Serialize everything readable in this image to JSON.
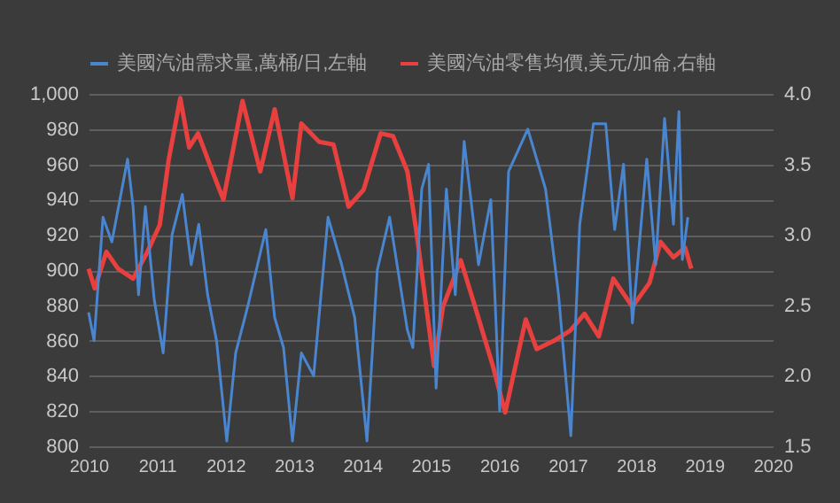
{
  "chart_data": {
    "type": "line",
    "legend": "top",
    "grid": "y",
    "xlim": [
      2010,
      2020
    ],
    "xticks": [
      2010,
      2011,
      2012,
      2013,
      2014,
      2015,
      2016,
      2017,
      2018,
      2019,
      2020
    ],
    "ylim": [
      800,
      1000
    ],
    "yticks": [
      800,
      820,
      840,
      860,
      880,
      900,
      920,
      940,
      960,
      980,
      {
        "value": 1000,
        "label": "1,000"
      }
    ],
    "y2lim": [
      1.5,
      4.0
    ],
    "y2ticks": [
      {
        "value": 1.5,
        "label": "1.5"
      },
      {
        "value": 2,
        "label": "2.0"
      },
      {
        "value": 2.5,
        "label": "2.5"
      },
      {
        "value": 3,
        "label": "3.0"
      },
      {
        "value": 3.5,
        "label": "3.5"
      },
      {
        "value": 4,
        "label": "4.0"
      }
    ],
    "series": [
      {
        "name": "美國汽油需求量,萬桶/日,左軸",
        "color": "#4a86d0",
        "x": [
          2010.0,
          2010.08,
          2010.21,
          2010.34,
          2010.57,
          2010.65,
          2010.73,
          2010.83,
          2010.96,
          2011.09,
          2011.22,
          2011.37,
          2011.5,
          2011.61,
          2011.74,
          2011.87,
          2012.02,
          2012.15,
          2012.33,
          2012.59,
          2012.72,
          2012.85,
          2012.98,
          2013.11,
          2013.29,
          2013.5,
          2013.7,
          2013.89,
          2014.07,
          2014.22,
          2014.4,
          2014.66,
          2014.74,
          2014.87,
          2014.97,
          2015.08,
          2015.23,
          2015.36,
          2015.49,
          2015.7,
          2015.88,
          2016.01,
          2016.14,
          2016.42,
          2016.68,
          2016.87,
          2017.05,
          2017.18,
          2017.38,
          2017.56,
          2017.69,
          2017.82,
          2017.95,
          2018.16,
          2018.29,
          2018.42,
          2018.55,
          2018.63,
          2018.68,
          2018.76
        ],
        "values": [
          876,
          860,
          930,
          916,
          963,
          936,
          886,
          936,
          883,
          853,
          920,
          943,
          903,
          926,
          886,
          860,
          803,
          853,
          880,
          923,
          873,
          856,
          803,
          853,
          840,
          930,
          903,
          873,
          803,
          900,
          930,
          866,
          856,
          946,
          960,
          833,
          946,
          886,
          973,
          903,
          940,
          820,
          956,
          980,
          946,
          886,
          806,
          926,
          983,
          983,
          923,
          960,
          870,
          963,
          903,
          986,
          926,
          990,
          906,
          930
        ]
      },
      {
        "name": "美國汽油零售均價,美元/加侖,右軸",
        "color": "#e8403f",
        "axis": "y2",
        "x": [
          2010.0,
          2010.09,
          2010.26,
          2010.43,
          2010.65,
          2010.85,
          2011.04,
          2011.17,
          2011.34,
          2011.47,
          2011.6,
          2011.81,
          2011.97,
          2012.25,
          2012.51,
          2012.72,
          2012.98,
          2013.11,
          2013.37,
          2013.58,
          2013.8,
          2014.02,
          2014.27,
          2014.45,
          2014.66,
          2014.79,
          2015.05,
          2015.18,
          2015.44,
          2015.65,
          2015.91,
          2016.09,
          2016.39,
          2016.55,
          2016.81,
          2017.04,
          2017.25,
          2017.46,
          2017.67,
          2017.95,
          2018.2,
          2018.36,
          2018.55,
          2018.72,
          2018.81
        ],
        "values": [
          2.76,
          2.62,
          2.88,
          2.76,
          2.69,
          2.87,
          3.07,
          3.53,
          3.97,
          3.62,
          3.72,
          3.45,
          3.25,
          3.95,
          3.45,
          3.89,
          3.26,
          3.79,
          3.66,
          3.64,
          3.2,
          3.32,
          3.72,
          3.7,
          3.45,
          3.03,
          2.07,
          2.49,
          2.82,
          2.49,
          2.07,
          1.74,
          2.4,
          2.19,
          2.25,
          2.32,
          2.44,
          2.28,
          2.69,
          2.49,
          2.66,
          2.95,
          2.84,
          2.91,
          2.76
        ]
      }
    ]
  }
}
